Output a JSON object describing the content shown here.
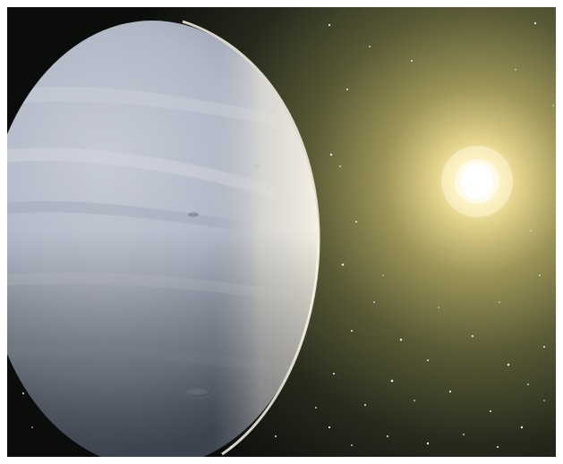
{
  "image": {
    "subject": "",
    "colors": {
      "frame_border": "#ffffff",
      "space": "#0b0d0b",
      "star_core": "#fffbe8",
      "star_glow": "#d9c779",
      "star_haze": "#5a5a36",
      "planet_lit": "#f2ede2",
      "planet_mid": "#b9bfcc",
      "planet_shadow": "#5c6472",
      "planet_bands": "#c8cdd8",
      "background_stars": "#e8ecf0"
    }
  }
}
